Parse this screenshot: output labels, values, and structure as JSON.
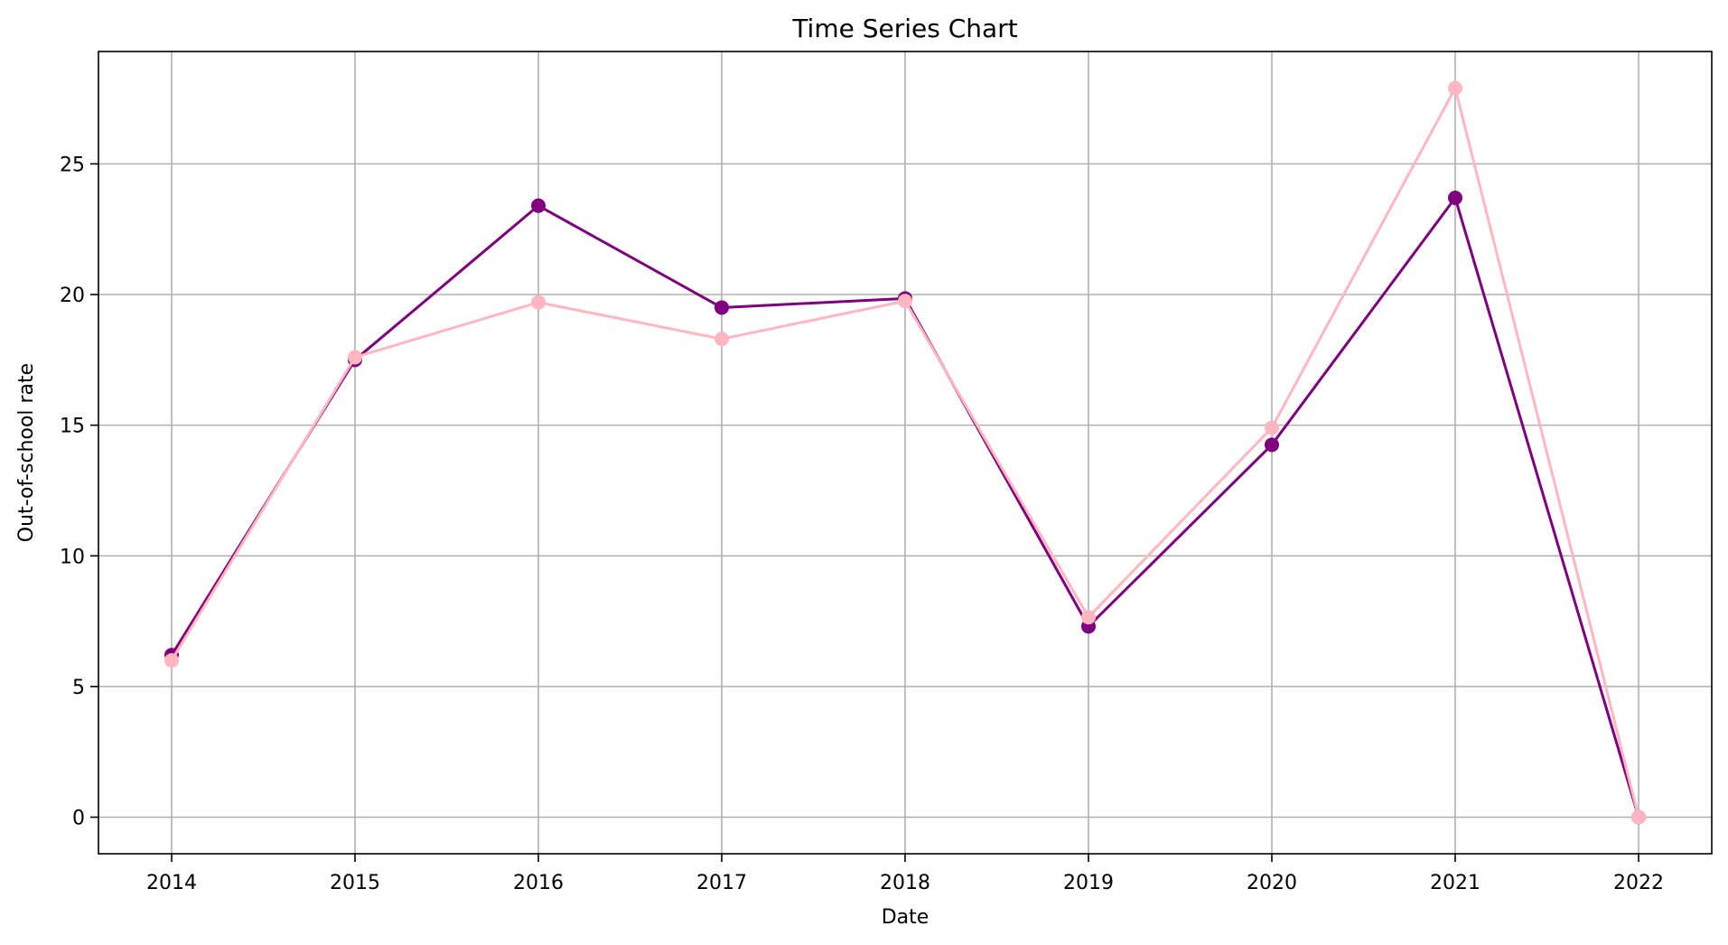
{
  "chart_data": {
    "type": "line",
    "title": "Time Series Chart",
    "xlabel": "Date",
    "ylabel": "Out-of-school rate",
    "x": [
      "2014",
      "2015",
      "2016",
      "2017",
      "2018",
      "2019",
      "2020",
      "2021",
      "2022"
    ],
    "series": [
      {
        "color": "#800080",
        "values": [
          6.2,
          17.5,
          23.4,
          19.5,
          19.85,
          7.3,
          14.25,
          23.7,
          0
        ]
      },
      {
        "color": "#ffb6c1",
        "values": [
          6.0,
          17.6,
          19.7,
          18.3,
          19.75,
          7.65,
          14.9,
          27.9,
          0
        ]
      }
    ],
    "ylim": [
      -1.4,
      29.3
    ],
    "yticks": [
      0,
      5,
      10,
      15,
      20,
      25
    ],
    "grid": true
  }
}
